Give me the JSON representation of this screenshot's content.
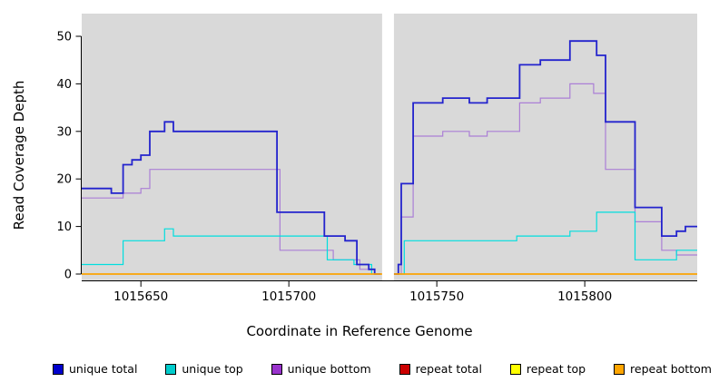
{
  "chart_data": {
    "type": "line",
    "subtype": "step",
    "title": "",
    "xlabel": "Coordinate in Reference Genome",
    "ylabel": "Read Coverage Depth",
    "xlim": [
      1015630,
      1015838
    ],
    "ylim": [
      0,
      50
    ],
    "xticks": [
      1015650,
      1015700,
      1015750,
      1015800
    ],
    "yticks": [
      0,
      10,
      20,
      30,
      40,
      50
    ],
    "plot_bg": "#d9d9d9",
    "grid": "off",
    "legend_position": "bottom",
    "gap_region": {
      "start": 1015731.5,
      "end": 1015735.5
    },
    "series": [
      {
        "id": "unique-total",
        "name": "unique total",
        "line_color": "#2323cd",
        "legend_color": "#0000cc",
        "line_width": 1.8,
        "segments": [
          [
            [
              1015630,
              18
            ],
            [
              1015640,
              17
            ],
            [
              1015644,
              23
            ],
            [
              1015647,
              24
            ],
            [
              1015650,
              25
            ],
            [
              1015653,
              30
            ],
            [
              1015658,
              32
            ],
            [
              1015661,
              30
            ],
            [
              1015696,
              13
            ],
            [
              1015712,
              8
            ],
            [
              1015719,
              7
            ],
            [
              1015723,
              2
            ],
            [
              1015727,
              1
            ],
            [
              1015729,
              0
            ],
            [
              1015731,
              0
            ]
          ],
          [
            [
              1015735,
              0
            ],
            [
              1015737,
              2
            ],
            [
              1015738,
              19
            ],
            [
              1015742,
              36
            ],
            [
              1015752,
              37
            ],
            [
              1015761,
              36
            ],
            [
              1015767,
              37
            ],
            [
              1015778,
              44
            ],
            [
              1015785,
              45
            ],
            [
              1015795,
              49
            ],
            [
              1015804,
              46
            ],
            [
              1015807,
              32
            ],
            [
              1015817,
              14
            ],
            [
              1015826,
              8
            ],
            [
              1015831,
              9
            ],
            [
              1015834,
              10
            ],
            [
              1015838,
              10
            ]
          ]
        ]
      },
      {
        "id": "unique-top",
        "name": "unique top",
        "line_color": "#00dede",
        "legend_color": "#00cccc",
        "line_width": 1.2,
        "segments": [
          [
            [
              1015630,
              2
            ],
            [
              1015644,
              7
            ],
            [
              1015658,
              9.5
            ],
            [
              1015661,
              8
            ],
            [
              1015713,
              3
            ],
            [
              1015722,
              2
            ],
            [
              1015728,
              0
            ],
            [
              1015731,
              0
            ]
          ],
          [
            [
              1015735,
              0
            ],
            [
              1015739,
              7
            ],
            [
              1015777,
              8
            ],
            [
              1015795,
              9
            ],
            [
              1015804,
              13
            ],
            [
              1015817,
              3
            ],
            [
              1015826,
              3
            ],
            [
              1015831,
              5
            ],
            [
              1015838,
              5
            ]
          ]
        ]
      },
      {
        "id": "unique-bottom",
        "name": "unique bottom",
        "line_color": "#ab7fd6",
        "legend_color": "#9933cc",
        "line_width": 1.2,
        "segments": [
          [
            [
              1015630,
              16
            ],
            [
              1015644,
              17
            ],
            [
              1015650,
              18
            ],
            [
              1015653,
              22
            ],
            [
              1015697,
              5
            ],
            [
              1015715,
              3
            ],
            [
              1015724,
              1
            ],
            [
              1015729,
              0
            ],
            [
              1015731,
              0
            ]
          ],
          [
            [
              1015735,
              0
            ],
            [
              1015738,
              12
            ],
            [
              1015742,
              29
            ],
            [
              1015752,
              30
            ],
            [
              1015761,
              29
            ],
            [
              1015767,
              30
            ],
            [
              1015778,
              36
            ],
            [
              1015785,
              37
            ],
            [
              1015795,
              40
            ],
            [
              1015803,
              38
            ],
            [
              1015807,
              22
            ],
            [
              1015817,
              11
            ],
            [
              1015826,
              5
            ],
            [
              1015831,
              4
            ],
            [
              1015838,
              4
            ]
          ]
        ]
      },
      {
        "id": "repeat-total",
        "name": "repeat total",
        "line_color": "#cc0000",
        "legend_color": "#cc0000",
        "line_width": 1.2,
        "segments": [
          [
            [
              1015630,
              0
            ],
            [
              1015838,
              0
            ]
          ]
        ]
      },
      {
        "id": "repeat-top",
        "name": "repeat top",
        "line_color": "#ffff00",
        "legend_color": "#ffff00",
        "line_width": 1.2,
        "segments": [
          [
            [
              1015630,
              0
            ],
            [
              1015838,
              0
            ]
          ]
        ]
      },
      {
        "id": "repeat-bottom",
        "name": "repeat bottom",
        "line_color": "#ffa500",
        "legend_color": "#ffa500",
        "line_width": 1.4,
        "segments": [
          [
            [
              1015630,
              0
            ],
            [
              1015838,
              0
            ]
          ]
        ]
      }
    ]
  }
}
